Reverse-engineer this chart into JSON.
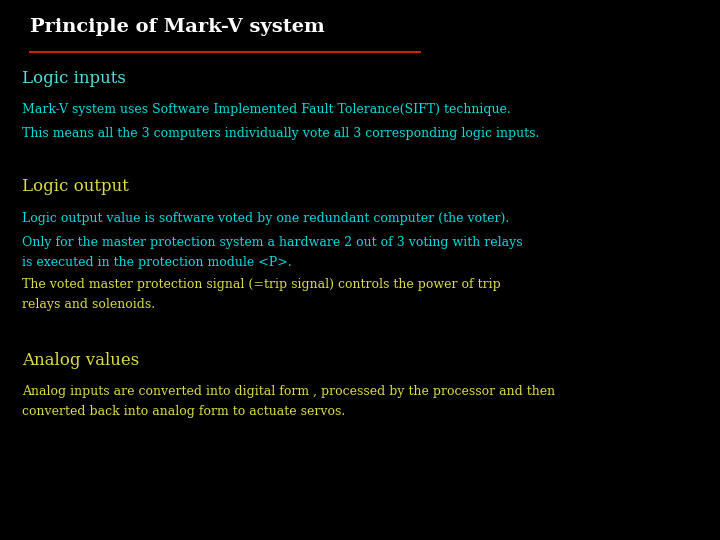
{
  "background_color": "#000000",
  "title": "Principle of Mark-V system",
  "title_color": "#FFFFFF",
  "title_fontsize": 14,
  "underline_color": "#CC2200",
  "section1_heading": "Logic inputs",
  "section1_heading_color": "#55DDDD",
  "section1_heading_fontsize": 12,
  "section1_line1": "Mark-V system uses Software Implemented Fault Tolerance(SIFT) technique.",
  "section1_line1_color": "#00DDDD",
  "section1_line1_fontsize": 9,
  "section1_line2": "This means all the 3 computers individually vote all 3 corresponding logic inputs.",
  "section1_line2_color": "#00DDDD",
  "section1_line2_fontsize": 9,
  "section2_heading": "Logic output",
  "section2_heading_color": "#DDDD44",
  "section2_heading_fontsize": 12,
  "section2_line1": "Logic output value is software voted by one redundant computer (the voter).",
  "section2_line1_color": "#00DDDD",
  "section2_line1_fontsize": 9,
  "section2_line2a": "Only for the master protection system a hardware 2 out of 3 voting with relays",
  "section2_line2b": "is executed in the protection module <P>.",
  "section2_line2_color": "#00DDDD",
  "section2_line2_fontsize": 9,
  "section2_line3a": "The voted master protection signal (=trip signal) controls the power of trip",
  "section2_line3b": "relays and solenoids.",
  "section2_line3_color": "#DDDD44",
  "section2_line3_fontsize": 9,
  "section3_heading": "Analog values",
  "section3_heading_color": "#DDDD44",
  "section3_heading_fontsize": 12,
  "section3_line1a": "Analog inputs are converted into digital form , processed by the processor and then",
  "section3_line1b": "converted back into analog form to actuate servos.",
  "section3_line1_color": "#DDDD44",
  "section3_line1_fontsize": 9
}
